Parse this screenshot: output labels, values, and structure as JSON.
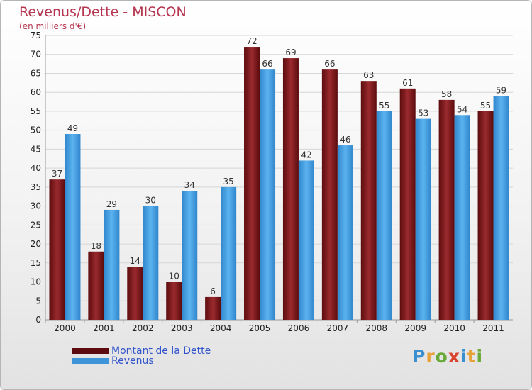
{
  "header": {
    "title": "Revenus/Dette - MISCON",
    "subtitle": "(en milliers d'€)"
  },
  "chart_data": {
    "type": "bar",
    "title": "Revenus/Dette - MISCON",
    "ylabel": "(en milliers d'€)",
    "xlabel": "",
    "categories": [
      "2000",
      "2001",
      "2002",
      "2003",
      "2004",
      "2005",
      "2006",
      "2007",
      "2008",
      "2009",
      "2010",
      "2011"
    ],
    "series": [
      {
        "name": "Montant de la Dette",
        "color": "#7a1a1e",
        "values": [
          37,
          18,
          14,
          10,
          6,
          72,
          69,
          66,
          63,
          61,
          58,
          55
        ]
      },
      {
        "name": "Revenus",
        "color": "#4aa3e3",
        "values": [
          49,
          29,
          30,
          34,
          35,
          66,
          42,
          46,
          55,
          53,
          54,
          59
        ]
      }
    ],
    "ylim": [
      0,
      75
    ],
    "yticks": [
      0,
      5,
      10,
      15,
      20,
      25,
      30,
      35,
      40,
      45,
      50,
      55,
      60,
      65,
      70,
      75
    ],
    "grid": true,
    "legend_position": "bottom-left"
  },
  "legend": {
    "items": [
      {
        "label": "Montant de la Dette",
        "color": "#5c0c0e"
      },
      {
        "label": "Revenus",
        "color": "#3d94d8"
      }
    ]
  },
  "logo": {
    "text": "Proxiti",
    "letter_colors": [
      "#3a8fd0",
      "#e8a23a",
      "#6aaa3a",
      "#d9452f",
      "#3a8fd0",
      "#e8a23a",
      "#6aaa3a"
    ]
  }
}
